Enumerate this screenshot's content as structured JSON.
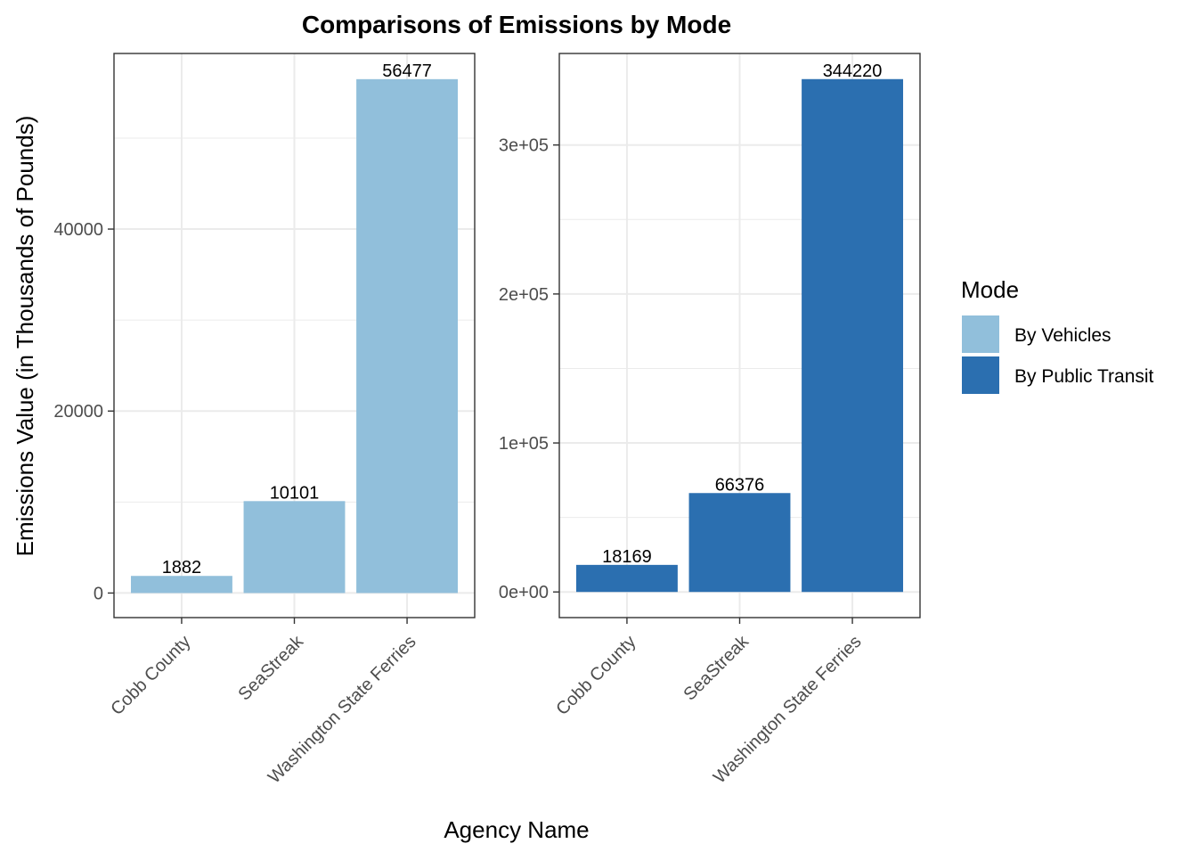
{
  "chart_data": {
    "type": "bar",
    "title": "Comparisons of Emissions by Mode",
    "xlabel": "Agency Name",
    "ylabel": "Emissions Value (in Thousands of Pounds)",
    "categories": [
      "Cobb County",
      "SeaStreak",
      "Washington State Ferries"
    ],
    "grid": true,
    "legend": {
      "title": "Mode",
      "position": "right",
      "entries": [
        {
          "label": "By Vehicles",
          "color": "#91bfdb"
        },
        {
          "label": "By Public Transit",
          "color": "#2b6fb0"
        }
      ]
    },
    "panels": [
      {
        "name": "By Vehicles",
        "color": "#91bfdb",
        "values": [
          1882,
          10101,
          56477
        ],
        "value_labels": [
          "1882",
          "10101",
          "56477"
        ],
        "ylim": [
          -2700,
          59300
        ],
        "major_ticks": [
          0,
          20000,
          40000
        ],
        "tick_labels": [
          "0",
          "20000",
          "40000"
        ],
        "minor_ticks": [
          10000,
          30000,
          50000
        ]
      },
      {
        "name": "By Public Transit",
        "color": "#2b6fb0",
        "values": [
          18169,
          66376,
          344220
        ],
        "value_labels": [
          "18169",
          "66376",
          "344220"
        ],
        "ylim": [
          -17211,
          361431
        ],
        "major_ticks": [
          0,
          100000,
          200000,
          300000
        ],
        "tick_labels": [
          "0e+00",
          "1e+05",
          "2e+05",
          "3e+05"
        ],
        "minor_ticks": [
          50000,
          150000,
          250000
        ]
      }
    ]
  }
}
